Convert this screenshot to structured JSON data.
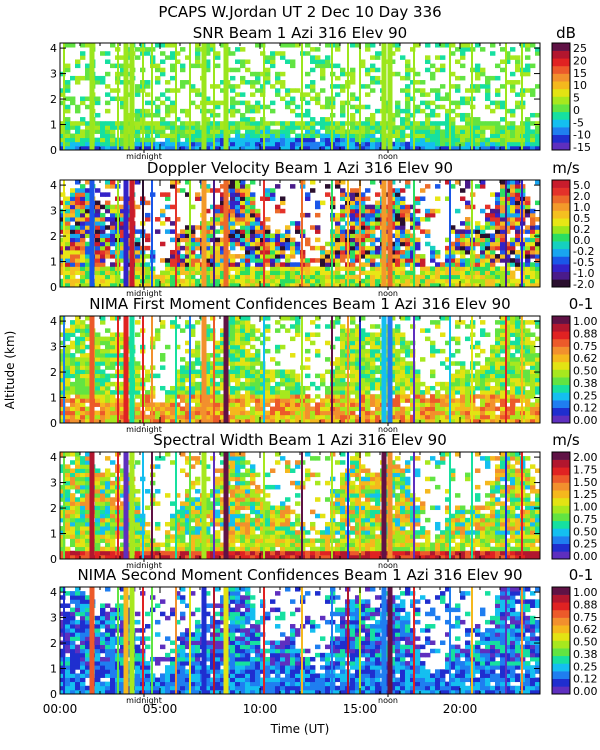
{
  "figure": {
    "title": "PCAPS W.Jordan UT   2 Dec 10 Day 336",
    "xlabel": "Time (UT)",
    "ylabel": "Altitude (km)",
    "x_ticks": [
      {
        "label": "00:00",
        "value": 0
      },
      {
        "label": "05:00",
        "value": 5
      },
      {
        "label": "10:00",
        "value": 10
      },
      {
        "label": "15:00",
        "value": 15
      },
      {
        "label": "20:00",
        "value": 20
      }
    ],
    "y_ticks": [
      "0",
      "1",
      "2",
      "3",
      "4"
    ],
    "markers": [
      {
        "label": "midnight",
        "value": 4.2
      },
      {
        "label": "noon",
        "value": 16.4
      }
    ]
  },
  "chart_data": [
    {
      "type": "heatmap",
      "title": "SNR Beam 1 Azi 316 Elev 90",
      "unit": "dB",
      "variable": "snr",
      "xlim": [
        0,
        24
      ],
      "ylim": [
        0,
        4.2
      ],
      "colorbar_ticks": [
        "25",
        "20",
        "15",
        "10",
        "5",
        "0",
        "-5",
        "-10",
        "-15"
      ],
      "colors": [
        "#5e2fbf",
        "#1f2ecf",
        "#1f7ef0",
        "#14bff0",
        "#16e0a0",
        "#62e442",
        "#a7e81e",
        "#e3e313",
        "#f5b81d",
        "#f2902d",
        "#ec5a2a",
        "#e02222",
        "#b2162e",
        "#601245"
      ]
    },
    {
      "type": "heatmap",
      "title": "Doppler Velocity Beam 1 Azi 316 Elev 90",
      "unit": "m/s",
      "variable": "doppler",
      "xlim": [
        0,
        24
      ],
      "ylim": [
        0,
        4.2
      ],
      "colorbar_ticks": [
        "5.0",
        "2.0",
        "1.0",
        "0.5",
        "0.2",
        "0.0",
        "-0.2",
        "-0.5",
        "-1.0",
        "-2.0"
      ],
      "colors": [
        "#2a0f2e",
        "#4a1b8a",
        "#3322c8",
        "#1a56e8",
        "#19a5f0",
        "#15d0c0",
        "#2ade62",
        "#9be61c",
        "#e8e615",
        "#f4c020",
        "#f39a2a",
        "#ec6a2a",
        "#e4322a",
        "#c81c2c"
      ]
    },
    {
      "type": "heatmap",
      "title": "NIMA First Moment Confidences Beam 1 Azi 316 Elev 90",
      "unit": "0-1",
      "variable": "conf1",
      "xlim": [
        0,
        24
      ],
      "ylim": [
        0,
        4.2
      ],
      "colorbar_ticks": [
        "1.00",
        "0.88",
        "0.75",
        "0.62",
        "0.50",
        "0.38",
        "0.25",
        "0.12",
        "0.00"
      ],
      "colors": [
        "#5e2fbf",
        "#1f2ecf",
        "#1f7ef0",
        "#14bff0",
        "#16e0a0",
        "#62e442",
        "#a7e81e",
        "#e3e313",
        "#f5b81d",
        "#f2902d",
        "#ec5a2a",
        "#e02222",
        "#b2162e",
        "#601245"
      ]
    },
    {
      "type": "heatmap",
      "title": "Spectral Width Beam 1 Azi 316 Elev 90",
      "unit": "m/s",
      "variable": "width",
      "xlim": [
        0,
        24
      ],
      "ylim": [
        0,
        4.2
      ],
      "colorbar_ticks": [
        "2.00",
        "1.75",
        "1.50",
        "1.25",
        "1.00",
        "0.75",
        "0.50",
        "0.25",
        "0.00"
      ],
      "colors": [
        "#5e2fbf",
        "#1f2ecf",
        "#1f7ef0",
        "#14bff0",
        "#16e0a0",
        "#62e442",
        "#a7e81e",
        "#e3e313",
        "#f5b81d",
        "#f2902d",
        "#ec5a2a",
        "#e02222",
        "#b2162e",
        "#601245"
      ]
    },
    {
      "type": "heatmap",
      "title": "NIMA Second Moment Confidences Beam 1 Azi 316 Elev 90",
      "unit": "0-1",
      "variable": "conf2",
      "xlim": [
        0,
        24
      ],
      "ylim": [
        0,
        4.2
      ],
      "colorbar_ticks": [
        "1.00",
        "0.88",
        "0.75",
        "0.62",
        "0.50",
        "0.38",
        "0.25",
        "0.12",
        "0.00"
      ],
      "colors": [
        "#5e2fbf",
        "#1f2ecf",
        "#1f7ef0",
        "#14bff0",
        "#16e0a0",
        "#62e442",
        "#a7e81e",
        "#e3e313",
        "#f5b81d",
        "#f2902d",
        "#ec5a2a",
        "#e02222",
        "#b2162e",
        "#601245"
      ]
    }
  ]
}
